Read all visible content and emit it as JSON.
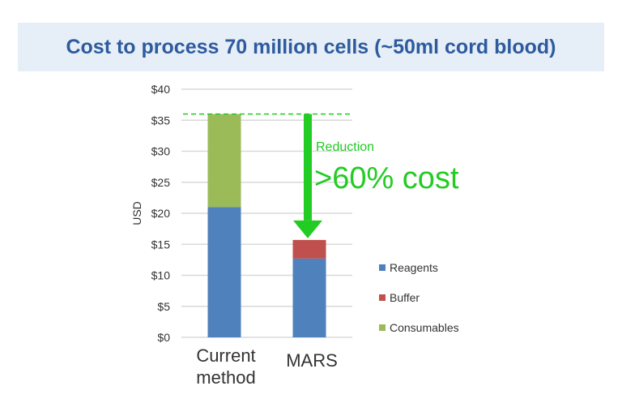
{
  "title": "Cost to process 70 million cells (~50ml cord blood)",
  "chart_data": {
    "type": "bar",
    "stacked": true,
    "title": "Cost to process 70 million cells (~50ml cord blood)",
    "xlabel": "",
    "ylabel": "USD",
    "ylim": [
      0,
      40
    ],
    "yticks": [
      0,
      5,
      10,
      15,
      20,
      25,
      30,
      35,
      40
    ],
    "ytick_labels": [
      "$0",
      "$5",
      "$10",
      "$15",
      "$20",
      "$25",
      "$30",
      "$35",
      "$40"
    ],
    "categories": [
      [
        "Current",
        "method"
      ],
      [
        "MARS"
      ]
    ],
    "series": [
      {
        "name": "Reagents",
        "color": "#4f81bd",
        "values": [
          21.0,
          12.7
        ]
      },
      {
        "name": "Buffer",
        "color": "#c0504d",
        "values": [
          0,
          3.0
        ]
      },
      {
        "name": "Consumables",
        "color": "#9bbb59",
        "values": [
          15.0,
          0
        ]
      }
    ],
    "grid": true,
    "legend_position": "right",
    "annotations": {
      "reference_line_value": 36,
      "label_small": "Reduction",
      "label_large": ">60% cost",
      "color": "#22cc22"
    }
  }
}
